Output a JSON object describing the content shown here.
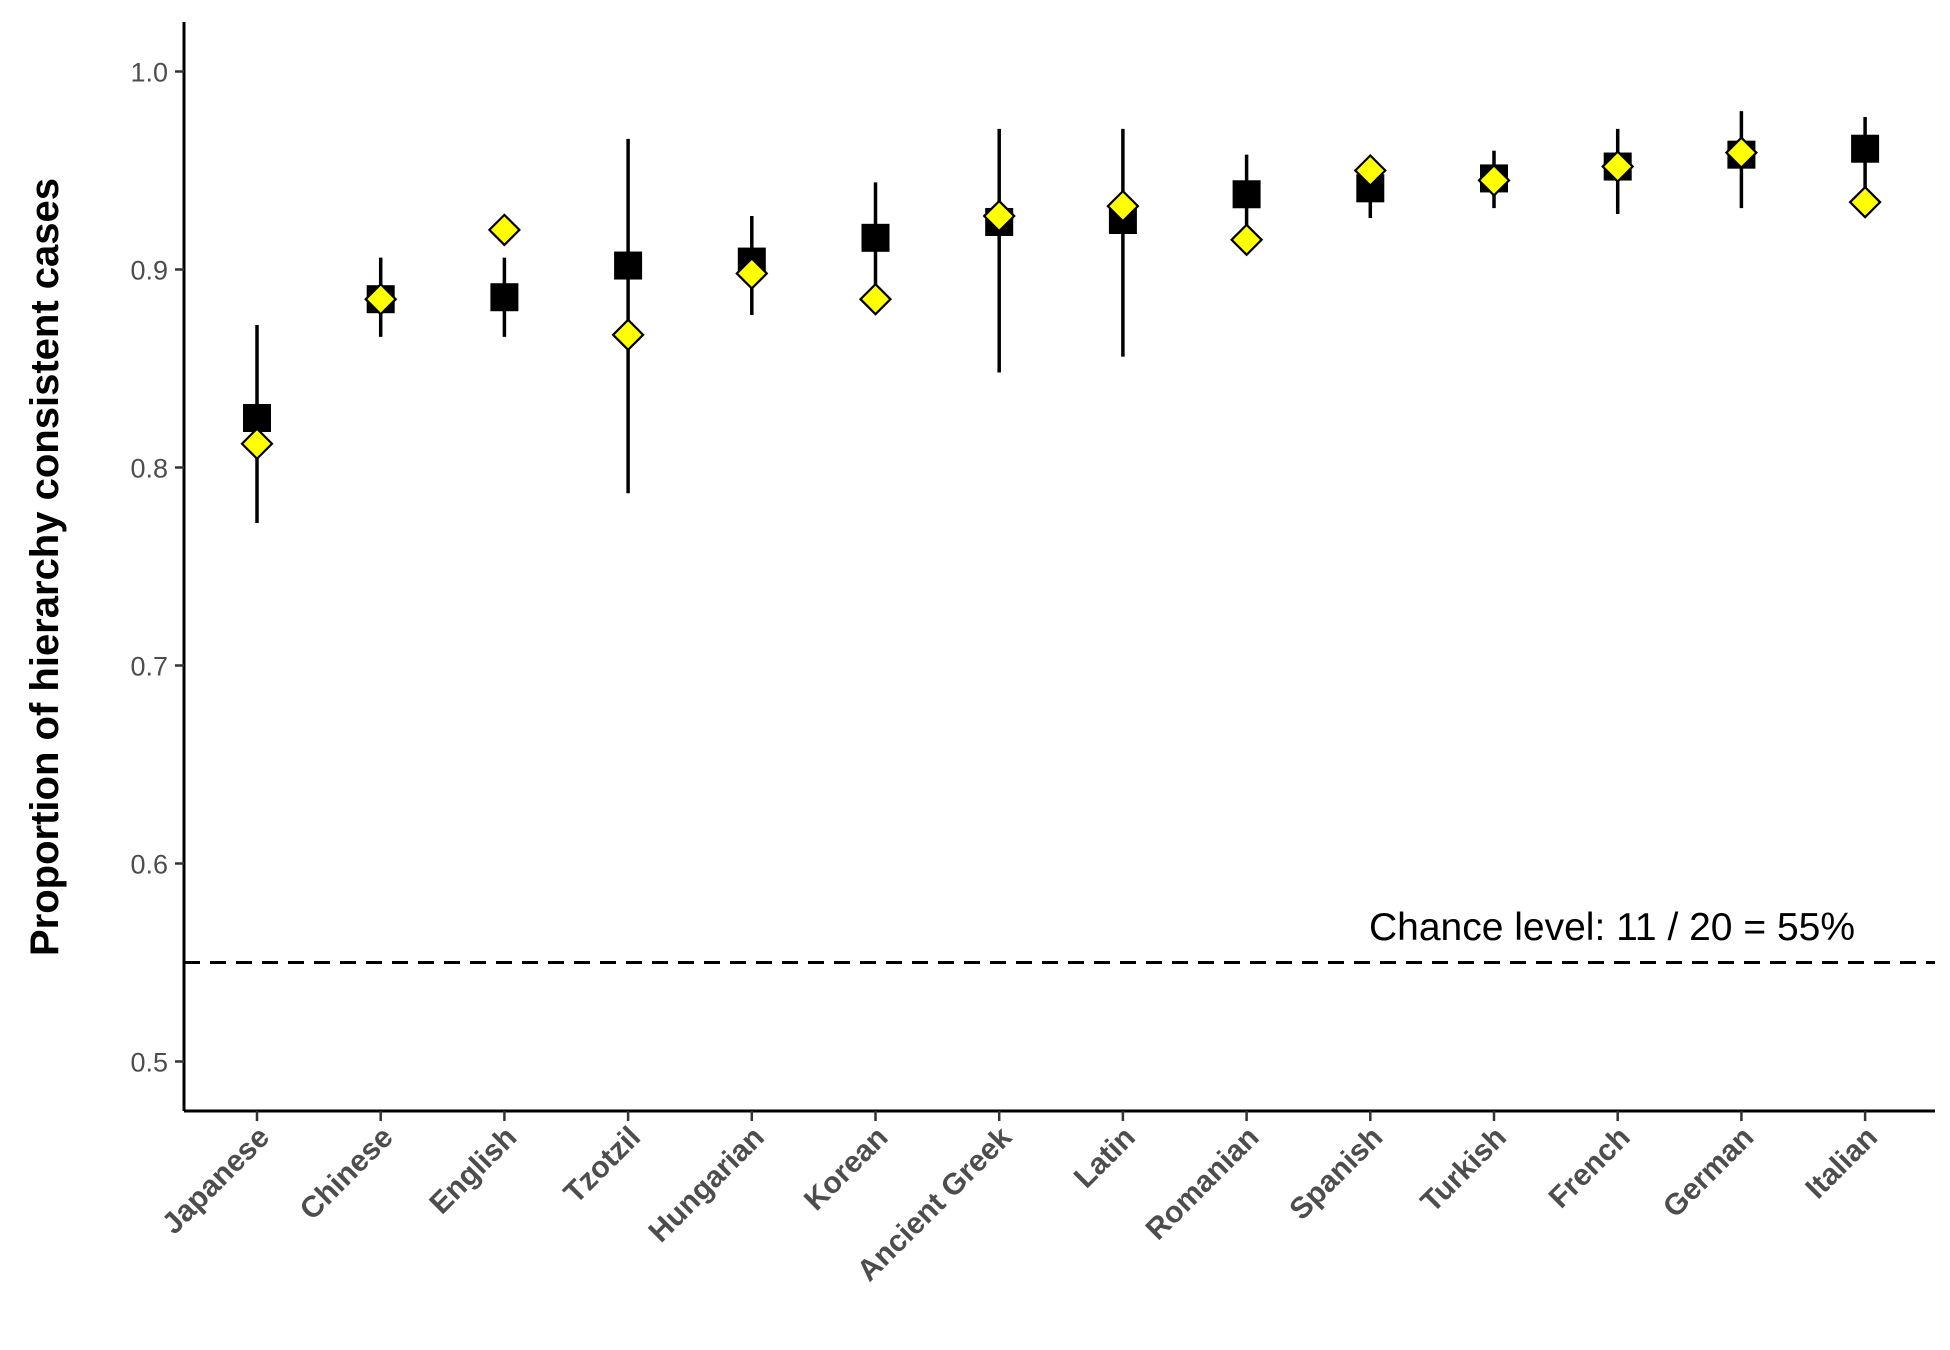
{
  "chart_data": {
    "type": "scatter",
    "title": "",
    "xlabel": "",
    "ylabel": "Proportion of hierarchy consistent cases",
    "categories": [
      "Japanese",
      "Chinese",
      "English",
      "Tzotzil",
      "Hungarian",
      "Korean",
      "Ancient Greek",
      "Latin",
      "Romanian",
      "Spanish",
      "Turkish",
      "French",
      "German",
      "Italian"
    ],
    "ylim": [
      0.475,
      1.025
    ],
    "yticks": [
      0.5,
      0.6,
      0.7,
      0.8,
      0.9,
      1.0
    ],
    "ytick_labels": [
      "0.5",
      "0.6",
      "0.7",
      "0.8",
      "0.9",
      "1.0"
    ],
    "grid": false,
    "series": [
      {
        "marker": "square",
        "color": "#000000",
        "values": [
          0.825,
          0.885,
          0.886,
          0.902,
          0.904,
          0.916,
          0.924,
          0.925,
          0.938,
          0.941,
          0.946,
          0.952,
          0.958,
          0.961
        ],
        "error_low": [
          0.772,
          0.866,
          0.866,
          0.787,
          0.877,
          0.885,
          0.848,
          0.856,
          0.916,
          0.926,
          0.931,
          0.928,
          0.931,
          0.933
        ],
        "error_high": [
          0.872,
          0.906,
          0.906,
          0.966,
          0.927,
          0.944,
          0.971,
          0.971,
          0.958,
          0.957,
          0.96,
          0.971,
          0.98,
          0.977
        ]
      },
      {
        "marker": "diamond",
        "color": "#ffff00",
        "stroke": "#000000",
        "values": [
          0.812,
          0.885,
          0.92,
          0.867,
          0.898,
          0.885,
          0.927,
          0.932,
          0.915,
          0.95,
          0.945,
          0.952,
          0.959,
          0.934
        ]
      }
    ],
    "reference_line": {
      "y": 0.55,
      "style": "dashed",
      "label": "Chance level: 11 / 20 = 55%"
    }
  }
}
